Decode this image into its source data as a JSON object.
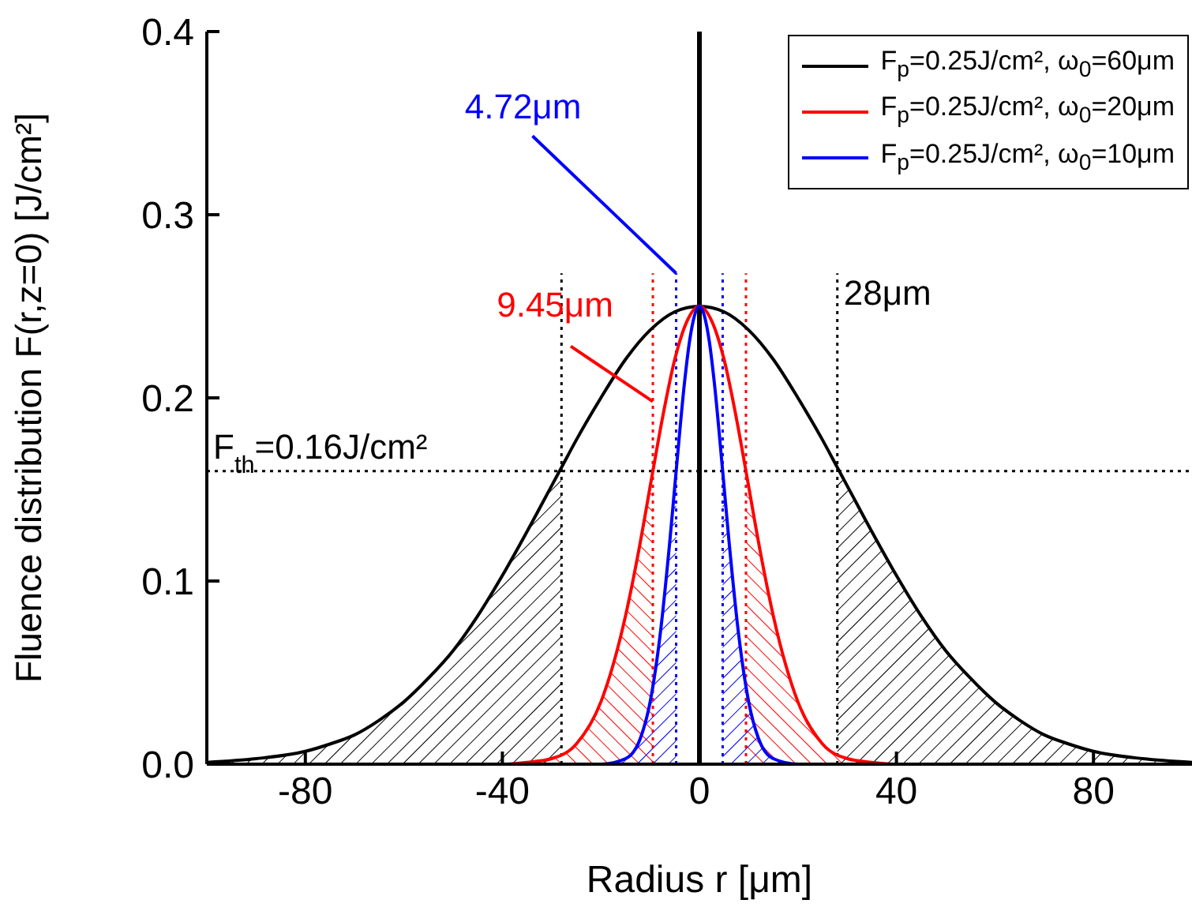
{
  "chart_data": {
    "type": "line",
    "xlabel": "Radius r [μm]",
    "ylabel": "Fluence distribution F(r,z=0) [J/cm²]",
    "xlim": [
      -100,
      100
    ],
    "xticks": [
      -80,
      -40,
      0,
      40,
      80
    ],
    "ylim": [
      0,
      0.4
    ],
    "yticks": [
      {
        "value": 0,
        "label": "0.0"
      },
      {
        "value": 0.1,
        "label": "0.1"
      },
      {
        "value": 0.2,
        "label": "0.2"
      },
      {
        "value": 0.3,
        "label": "0.3"
      },
      {
        "value": 0.4,
        "label": "0.4"
      }
    ],
    "grid": false,
    "legend": "top right",
    "marker": "none",
    "line_style": "solid",
    "series": [
      {
        "type": "area",
        "color": "#000000",
        "x": [
          -100,
          -90,
          -80,
          -70,
          -60,
          -50,
          -40,
          -30,
          -28,
          0,
          28,
          30,
          40,
          50,
          60,
          70,
          80,
          90,
          100
        ],
        "values": [
          0.001,
          0.003,
          0.007,
          0.016,
          0.034,
          0.062,
          0.103,
          0.152,
          0.162,
          null,
          0.162,
          0.152,
          0.103,
          0.062,
          0.034,
          0.016,
          0.007,
          0.003,
          0.001
        ]
      },
      {
        "type": "area",
        "color": "#ff0000",
        "x": [
          -40,
          -35,
          -30,
          -25,
          -20,
          -15,
          -12.5,
          -9.45,
          0,
          9.45,
          12.5,
          15,
          20,
          25,
          30,
          35,
          40
        ],
        "values": [
          0,
          0.001,
          0.003,
          0.011,
          0.034,
          0.081,
          0.114,
          0.16,
          null,
          0.16,
          0.114,
          0.081,
          0.034,
          0.011,
          0.003,
          0.001,
          0
        ]
      },
      {
        "type": "area",
        "color": "#0000ff",
        "x": [
          -20,
          -15,
          -12,
          -10,
          -8,
          -6,
          -4.72,
          0,
          4.72,
          6,
          8,
          10,
          12,
          15,
          20
        ],
        "values": [
          0,
          0.003,
          0.014,
          0.034,
          0.07,
          0.122,
          0.16,
          null,
          0.16,
          0.122,
          0.07,
          0.034,
          0.014,
          0.003,
          0
        ]
      },
      {
        "name": "F$_{p}$=0.25J/cm², ω$_{0}$=60μm",
        "color": "#000000",
        "x": [
          -100,
          -90,
          -80,
          -75,
          -70,
          -65,
          -60,
          -55,
          -50,
          -45,
          -40,
          -35,
          -30,
          -28,
          -25,
          -20,
          -15,
          -10,
          -5,
          0,
          5,
          10,
          15,
          20,
          25,
          28,
          30,
          35,
          40,
          45,
          50,
          55,
          60,
          65,
          70,
          75,
          80,
          90,
          100
        ],
        "values": [
          0.001,
          0.003,
          0.007,
          0.011,
          0.016,
          0.024,
          0.034,
          0.047,
          0.062,
          0.081,
          0.103,
          0.127,
          0.152,
          0.162,
          0.177,
          0.2,
          0.221,
          0.237,
          0.247,
          0.25,
          0.247,
          0.237,
          0.221,
          0.2,
          0.177,
          0.162,
          0.152,
          0.127,
          0.103,
          0.081,
          0.062,
          0.047,
          0.034,
          0.024,
          0.016,
          0.011,
          0.007,
          0.003,
          0.001
        ]
      },
      {
        "name": "F$_{p}$=0.25J/cm², ω$_{0}$=20μm",
        "color": "#ff0000",
        "x": [
          -100,
          -40,
          -35,
          -30,
          -25,
          -20,
          -15,
          -12.5,
          -9.45,
          -7.5,
          -5,
          -2.5,
          0,
          2.5,
          5,
          7.5,
          9.45,
          12.5,
          15,
          20,
          25,
          30,
          35,
          40,
          100
        ],
        "values": [
          0,
          0,
          0.001,
          0.003,
          0.011,
          0.034,
          0.081,
          0.114,
          0.16,
          0.189,
          0.221,
          0.242,
          0.25,
          0.242,
          0.221,
          0.189,
          0.16,
          0.114,
          0.081,
          0.034,
          0.011,
          0.003,
          0.001,
          0,
          0
        ]
      },
      {
        "name": "F$_{p}$=0.25J/cm², ω$_{0}$=10μm",
        "color": "#0000ff",
        "x": [
          -100,
          -20,
          -15,
          -12,
          -10,
          -8,
          -6,
          -4.72,
          -3,
          -2,
          0,
          2,
          3,
          4.72,
          6,
          8,
          10,
          12,
          15,
          20,
          100
        ],
        "values": [
          0,
          0,
          0.003,
          0.014,
          0.034,
          0.07,
          0.122,
          0.16,
          0.209,
          0.231,
          0.25,
          0.231,
          0.209,
          0.16,
          0.122,
          0.07,
          0.034,
          0.014,
          0.003,
          0,
          0
        ]
      }
    ],
    "ref_lines": [
      {
        "axis": "x",
        "value": 0,
        "color": "#000000",
        "line_style": "solid"
      },
      {
        "axis": "x",
        "value": -28,
        "color": "#000000",
        "line_style": "dotted"
      },
      {
        "axis": "x",
        "value": 28,
        "color": "#000000",
        "line_style": "dotted"
      },
      {
        "axis": "x",
        "value": -9.45,
        "color": "#ff0000",
        "line_style": "dotted"
      },
      {
        "axis": "x",
        "value": 9.45,
        "color": "#ff0000",
        "line_style": "dotted"
      },
      {
        "axis": "x",
        "value": -4.72,
        "color": "#0000ff",
        "line_style": "dotted"
      },
      {
        "axis": "x",
        "value": 4.72,
        "color": "#0000ff",
        "line_style": "dotted"
      },
      {
        "axis": "y",
        "value": 0.16,
        "color": "#000000",
        "line_style": "dotted",
        "label": "F$_{th}$=0.16J/cm²"
      }
    ],
    "annotations": [
      {
        "text": "4.72μm",
        "x": -4.72,
        "y": 0.268
      },
      {
        "text": "9.45μm",
        "x": -9.45,
        "y": 0.198
      },
      {
        "text": "28μm",
        "x": 28,
        "y": 0.268
      }
    ]
  }
}
